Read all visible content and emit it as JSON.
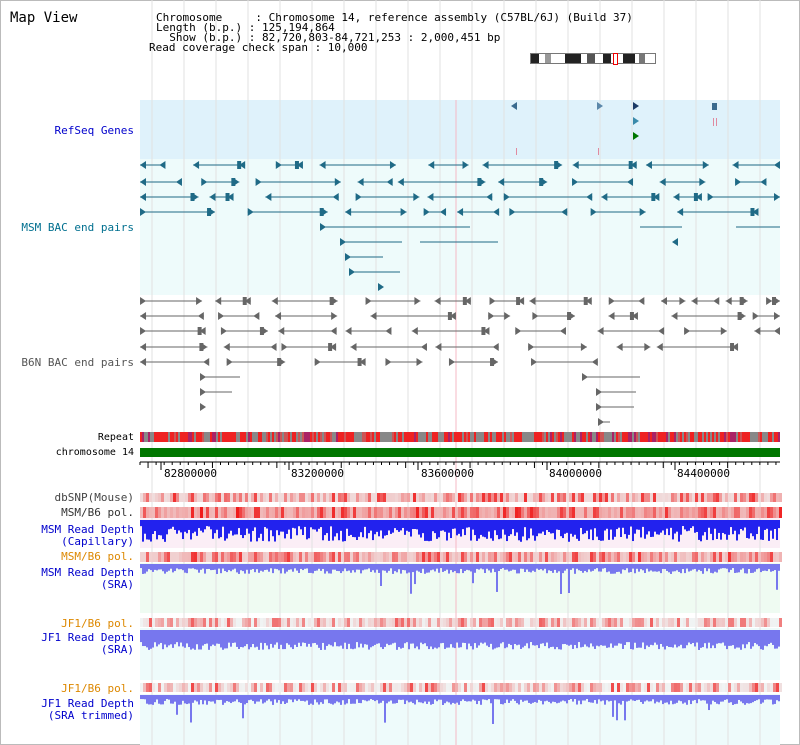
{
  "title": "Map View",
  "info": {
    "chromosome": "Chromosome     : Chromosome 14, reference assembly (C57BL/6J) (Build 37)",
    "length": "Length (b.p.) : 125,194,864",
    "show": "  Show (b.p.) : 82,720,803-84,721,253 : 2,000,451 bp",
    "span": "Read coverage check span : 10,000"
  },
  "tracks": {
    "refseq": "RefSeq Genes",
    "msm_bac": "MSM BAC end pairs",
    "b6n_bac": "B6N BAC end pairs",
    "repeat": "Repeat",
    "chromosome": "chromosome 14",
    "dbsnp": "dbSNP(Mouse)",
    "msm_b6_pol_1": "MSM/B6 pol.",
    "msm_depth_cap_1": "MSM Read Depth",
    "msm_depth_cap_2": "(Capillary)",
    "msm_b6_pol_2": "MSM/B6 pol.",
    "msm_depth_sra_1": "MSM Read Depth",
    "msm_depth_sra_2": "(SRA)",
    "jf1_b6_pol_1": "JF1/B6 pol.",
    "jf1_depth_sra_1": "JF1 Read Depth",
    "jf1_depth_sra_2": "(SRA)",
    "jf1_b6_pol_2": "JF1/B6 pol.",
    "jf1_depth_trim_1": "JF1 Read Depth",
    "jf1_depth_trim_2": "(SRA trimmed)"
  },
  "axis": {
    "ticks": [
      "82800000",
      "83200000",
      "83600000",
      "84000000",
      "84400000"
    ]
  },
  "colors": {
    "label_blue": "#0000cc",
    "label_orange": "#dd8800",
    "label_teal": "#006f8f",
    "label_gray": "#555555",
    "chromosome_bar": "#007700",
    "depth_cap": "#2222ee",
    "depth_sra": "#7777ee"
  }
}
